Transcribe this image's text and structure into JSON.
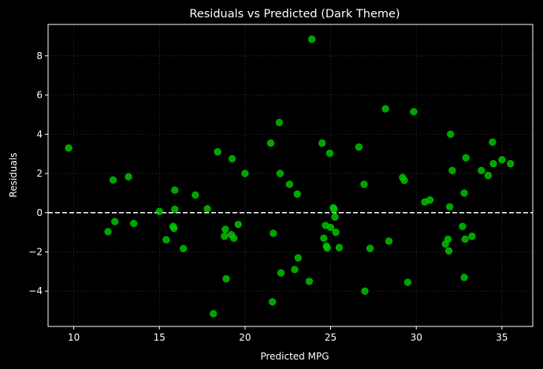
{
  "chart_data": {
    "type": "scatter",
    "title": "Residuals vs Predicted (Dark Theme)",
    "xlabel": "Predicted MPG",
    "ylabel": "Residuals",
    "xlim": [
      8.5,
      36.8
    ],
    "ylim": [
      -5.8,
      9.6
    ],
    "xticks": [
      10,
      15,
      20,
      25,
      30,
      35
    ],
    "yticks": [
      -4,
      -2,
      0,
      2,
      4,
      6,
      8
    ],
    "grid": true,
    "reference_line": {
      "y": 0,
      "style": "dashed"
    },
    "colors": {
      "background": "#000000",
      "points": "#00cc00",
      "reference_line": "#ffffff",
      "grid": "#333333"
    },
    "points": [
      {
        "x": 9.7,
        "y": 3.3
      },
      {
        "x": 12.0,
        "y": -0.97
      },
      {
        "x": 12.3,
        "y": 1.67
      },
      {
        "x": 12.4,
        "y": -0.45
      },
      {
        "x": 13.2,
        "y": 1.83
      },
      {
        "x": 13.5,
        "y": -0.55
      },
      {
        "x": 15.0,
        "y": 0.06
      },
      {
        "x": 15.4,
        "y": -1.38
      },
      {
        "x": 15.8,
        "y": -0.7
      },
      {
        "x": 15.85,
        "y": -0.8
      },
      {
        "x": 15.9,
        "y": 1.15
      },
      {
        "x": 15.9,
        "y": 0.17
      },
      {
        "x": 16.4,
        "y": -1.83
      },
      {
        "x": 17.1,
        "y": 0.9
      },
      {
        "x": 17.8,
        "y": 0.2
      },
      {
        "x": 18.15,
        "y": -5.15
      },
      {
        "x": 18.4,
        "y": 3.1
      },
      {
        "x": 18.8,
        "y": -1.2
      },
      {
        "x": 18.85,
        "y": -0.85
      },
      {
        "x": 18.9,
        "y": -3.37
      },
      {
        "x": 19.2,
        "y": -1.12
      },
      {
        "x": 19.25,
        "y": 2.75
      },
      {
        "x": 19.35,
        "y": -1.3
      },
      {
        "x": 19.6,
        "y": -0.6
      },
      {
        "x": 20.0,
        "y": 2.0
      },
      {
        "x": 21.5,
        "y": 3.55
      },
      {
        "x": 21.6,
        "y": -4.55
      },
      {
        "x": 21.65,
        "y": -1.05
      },
      {
        "x": 22.0,
        "y": 4.6
      },
      {
        "x": 22.05,
        "y": 2.0
      },
      {
        "x": 22.1,
        "y": -3.07
      },
      {
        "x": 22.6,
        "y": 1.45
      },
      {
        "x": 22.9,
        "y": -2.9
      },
      {
        "x": 23.05,
        "y": 0.95
      },
      {
        "x": 23.1,
        "y": -2.3
      },
      {
        "x": 23.75,
        "y": -3.5
      },
      {
        "x": 23.9,
        "y": 8.85
      },
      {
        "x": 24.5,
        "y": 3.55
      },
      {
        "x": 24.6,
        "y": -1.3
      },
      {
        "x": 24.7,
        "y": -0.65
      },
      {
        "x": 24.75,
        "y": -1.7
      },
      {
        "x": 24.8,
        "y": -1.8
      },
      {
        "x": 24.95,
        "y": 3.03
      },
      {
        "x": 25.0,
        "y": -0.75
      },
      {
        "x": 25.15,
        "y": 0.25
      },
      {
        "x": 25.2,
        "y": 0.18
      },
      {
        "x": 25.25,
        "y": -0.22
      },
      {
        "x": 25.3,
        "y": -1.0
      },
      {
        "x": 25.5,
        "y": -1.78
      },
      {
        "x": 26.65,
        "y": 3.35
      },
      {
        "x": 26.95,
        "y": 1.45
      },
      {
        "x": 27.0,
        "y": -4.0
      },
      {
        "x": 27.3,
        "y": -1.82
      },
      {
        "x": 28.2,
        "y": 5.3
      },
      {
        "x": 28.4,
        "y": -1.45
      },
      {
        "x": 29.2,
        "y": 1.8
      },
      {
        "x": 29.3,
        "y": 1.65
      },
      {
        "x": 29.5,
        "y": -3.55
      },
      {
        "x": 29.85,
        "y": 5.15
      },
      {
        "x": 30.5,
        "y": 0.55
      },
      {
        "x": 30.8,
        "y": 0.65
      },
      {
        "x": 31.7,
        "y": -1.6
      },
      {
        "x": 31.85,
        "y": -1.35
      },
      {
        "x": 31.9,
        "y": -1.95
      },
      {
        "x": 31.95,
        "y": 0.3
      },
      {
        "x": 32.0,
        "y": 4.0
      },
      {
        "x": 32.1,
        "y": 2.15
      },
      {
        "x": 32.7,
        "y": -0.7
      },
      {
        "x": 32.8,
        "y": 1.0
      },
      {
        "x": 32.8,
        "y": -3.3
      },
      {
        "x": 32.85,
        "y": -1.35
      },
      {
        "x": 32.9,
        "y": 2.8
      },
      {
        "x": 33.25,
        "y": -1.2
      },
      {
        "x": 33.8,
        "y": 2.15
      },
      {
        "x": 34.2,
        "y": 1.9
      },
      {
        "x": 34.45,
        "y": 3.6
      },
      {
        "x": 34.5,
        "y": 2.5
      },
      {
        "x": 35.0,
        "y": 2.7
      },
      {
        "x": 35.5,
        "y": 2.5
      }
    ]
  }
}
